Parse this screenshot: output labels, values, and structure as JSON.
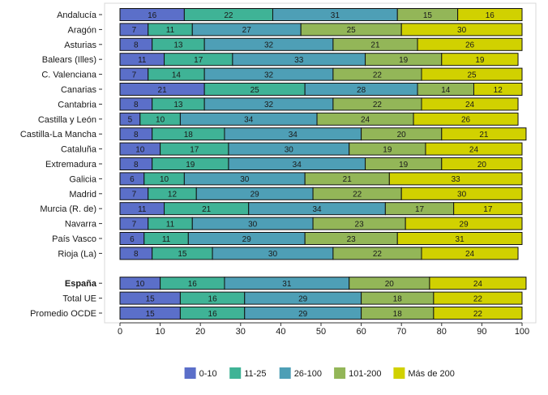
{
  "chart_data": {
    "type": "bar",
    "orientation": "horizontal",
    "stacked": true,
    "categories": [
      "Andalucía",
      "Aragón",
      "Asturias",
      "Balears (Illes)",
      "C. Valenciana",
      "Canarias",
      "Cantabria",
      "Castilla y León",
      "Castilla-La Mancha",
      "Cataluña",
      "Extremadura",
      "Galicia",
      "Madrid",
      "Murcia (R. de)",
      "Navarra",
      "País Vasco",
      "Rioja (La)",
      "España",
      "Total UE",
      "Promedio OCDE"
    ],
    "bold_categories": [
      "España"
    ],
    "gap_before_category": "España",
    "series": [
      {
        "name": "0-10",
        "color": "#5b6fc9",
        "values": [
          16,
          7,
          8,
          11,
          7,
          21,
          8,
          5,
          8,
          10,
          8,
          6,
          7,
          11,
          7,
          6,
          8,
          10,
          15,
          15
        ]
      },
      {
        "name": "11-25",
        "color": "#3fb396",
        "values": [
          22,
          11,
          13,
          17,
          14,
          25,
          13,
          10,
          18,
          17,
          19,
          10,
          12,
          21,
          11,
          11,
          15,
          16,
          16,
          16
        ]
      },
      {
        "name": "26-100",
        "color": "#4e9fb6",
        "values": [
          31,
          27,
          32,
          33,
          32,
          28,
          32,
          34,
          34,
          30,
          34,
          30,
          29,
          34,
          30,
          29,
          30,
          31,
          29,
          29
        ]
      },
      {
        "name": "101-200",
        "color": "#93b658",
        "values": [
          15,
          25,
          21,
          19,
          22,
          14,
          22,
          24,
          20,
          19,
          19,
          21,
          22,
          17,
          23,
          23,
          22,
          20,
          18,
          18
        ]
      },
      {
        "name": "Más de 200",
        "color": "#d1d100",
        "values": [
          16,
          30,
          26,
          19,
          25,
          12,
          24,
          26,
          21,
          24,
          20,
          33,
          30,
          17,
          29,
          31,
          24,
          24,
          22,
          22
        ]
      }
    ],
    "xlim": [
      0,
      100
    ],
    "xticks": [
      "0",
      "10",
      "20",
      "30",
      "40",
      "50",
      "60",
      "70",
      "80",
      "90",
      "100"
    ],
    "grid": false,
    "legend_position": "bottom"
  }
}
